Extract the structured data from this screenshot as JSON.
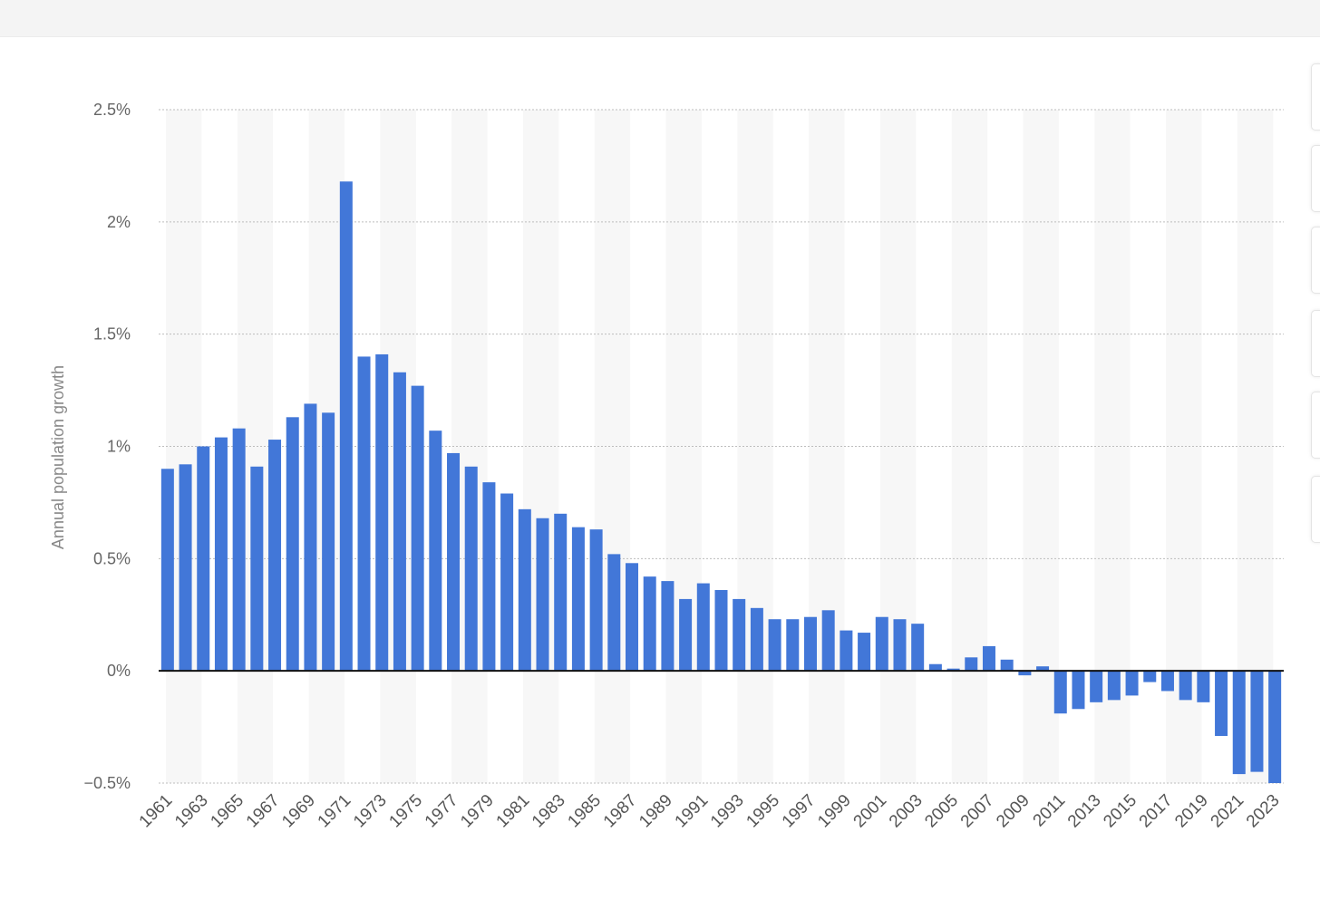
{
  "chart_data": {
    "type": "bar",
    "title": "",
    "xlabel": "",
    "ylabel": "Annual population growth",
    "ylim": [
      -0.5,
      2.5
    ],
    "yticks": [
      {
        "value": 2.5,
        "label": "2.5%"
      },
      {
        "value": 2,
        "label": "2%"
      },
      {
        "value": 1.5,
        "label": "1.5%"
      },
      {
        "value": 1,
        "label": "1%"
      },
      {
        "value": 0.5,
        "label": "0.5%"
      },
      {
        "value": 0,
        "label": "0%"
      },
      {
        "value": -0.5,
        "label": "−0.5%"
      }
    ],
    "grid": true,
    "bar_color": "#4277d8",
    "band_color": "#f7f7f7",
    "categories": [
      "1961",
      "1962",
      "1963",
      "1964",
      "1965",
      "1966",
      "1967",
      "1968",
      "1969",
      "1970",
      "1971",
      "1972",
      "1973",
      "1974",
      "1975",
      "1976",
      "1977",
      "1978",
      "1979",
      "1980",
      "1981",
      "1982",
      "1983",
      "1984",
      "1985",
      "1986",
      "1987",
      "1988",
      "1989",
      "1990",
      "1991",
      "1992",
      "1993",
      "1994",
      "1995",
      "1996",
      "1997",
      "1998",
      "1999",
      "2000",
      "2001",
      "2002",
      "2003",
      "2004",
      "2005",
      "2006",
      "2007",
      "2008",
      "2009",
      "2010",
      "2011",
      "2012",
      "2013",
      "2014",
      "2015",
      "2016",
      "2017",
      "2018",
      "2019",
      "2020",
      "2021",
      "2022",
      "2023"
    ],
    "x_tick_labels": [
      "1961",
      "1963",
      "1965",
      "1967",
      "1969",
      "1971",
      "1973",
      "1975",
      "1977",
      "1979",
      "1981",
      "1983",
      "1985",
      "1987",
      "1989",
      "1991",
      "1993",
      "1995",
      "1997",
      "1999",
      "2001",
      "2003",
      "2005",
      "2007",
      "2009",
      "2011",
      "2013",
      "2015",
      "2017",
      "2019",
      "2021",
      "2023"
    ],
    "values": [
      0.9,
      0.92,
      1.0,
      1.04,
      1.08,
      0.91,
      1.03,
      1.13,
      1.19,
      1.15,
      2.18,
      1.4,
      1.41,
      1.33,
      1.27,
      1.07,
      0.97,
      0.91,
      0.84,
      0.79,
      0.72,
      0.68,
      0.7,
      0.64,
      0.63,
      0.52,
      0.48,
      0.42,
      0.4,
      0.32,
      0.39,
      0.36,
      0.32,
      0.28,
      0.23,
      0.23,
      0.24,
      0.27,
      0.18,
      0.17,
      0.24,
      0.23,
      0.21,
      0.03,
      0.01,
      0.06,
      0.11,
      0.05,
      -0.02,
      0.02,
      -0.19,
      -0.17,
      -0.14,
      -0.13,
      -0.11,
      -0.05,
      -0.09,
      -0.13,
      -0.14,
      -0.29,
      -0.46,
      -0.45,
      -0.5
    ]
  }
}
